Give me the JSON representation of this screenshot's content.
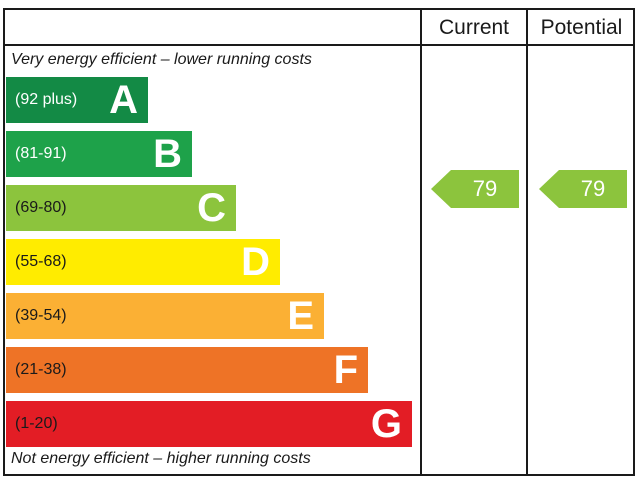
{
  "header": {
    "current": "Current",
    "potential": "Potential"
  },
  "captions": {
    "top": "Very energy efficient – lower running costs",
    "bottom": "Not energy efficient – higher running costs"
  },
  "chart_data": {
    "type": "bar",
    "categories": [
      "A",
      "B",
      "C",
      "D",
      "E",
      "F",
      "G"
    ],
    "bands": [
      {
        "letter": "A",
        "range": "(92 plus)",
        "color": "#138a45",
        "text_color": "#ffffff"
      },
      {
        "letter": "B",
        "range": "(81-91)",
        "color": "#1ea24a",
        "text_color": "#ffffff"
      },
      {
        "letter": "C",
        "range": "(69-80)",
        "color": "#8cc43d",
        "text_color": "#1a1a1a"
      },
      {
        "letter": "D",
        "range": "(55-68)",
        "color": "#ffec00",
        "text_color": "#1a1a1a"
      },
      {
        "letter": "E",
        "range": "(39-54)",
        "color": "#fbb034",
        "text_color": "#1a1a1a"
      },
      {
        "letter": "F",
        "range": "(21-38)",
        "color": "#ee7326",
        "text_color": "#1a1a1a"
      },
      {
        "letter": "G",
        "range": "(1-20)",
        "color": "#e31d25",
        "text_color": "#1a1a1a"
      }
    ],
    "current": {
      "value": "79",
      "band": "C",
      "color": "#8cc43d"
    },
    "potential": {
      "value": "79",
      "band": "C",
      "color": "#8cc43d"
    }
  }
}
